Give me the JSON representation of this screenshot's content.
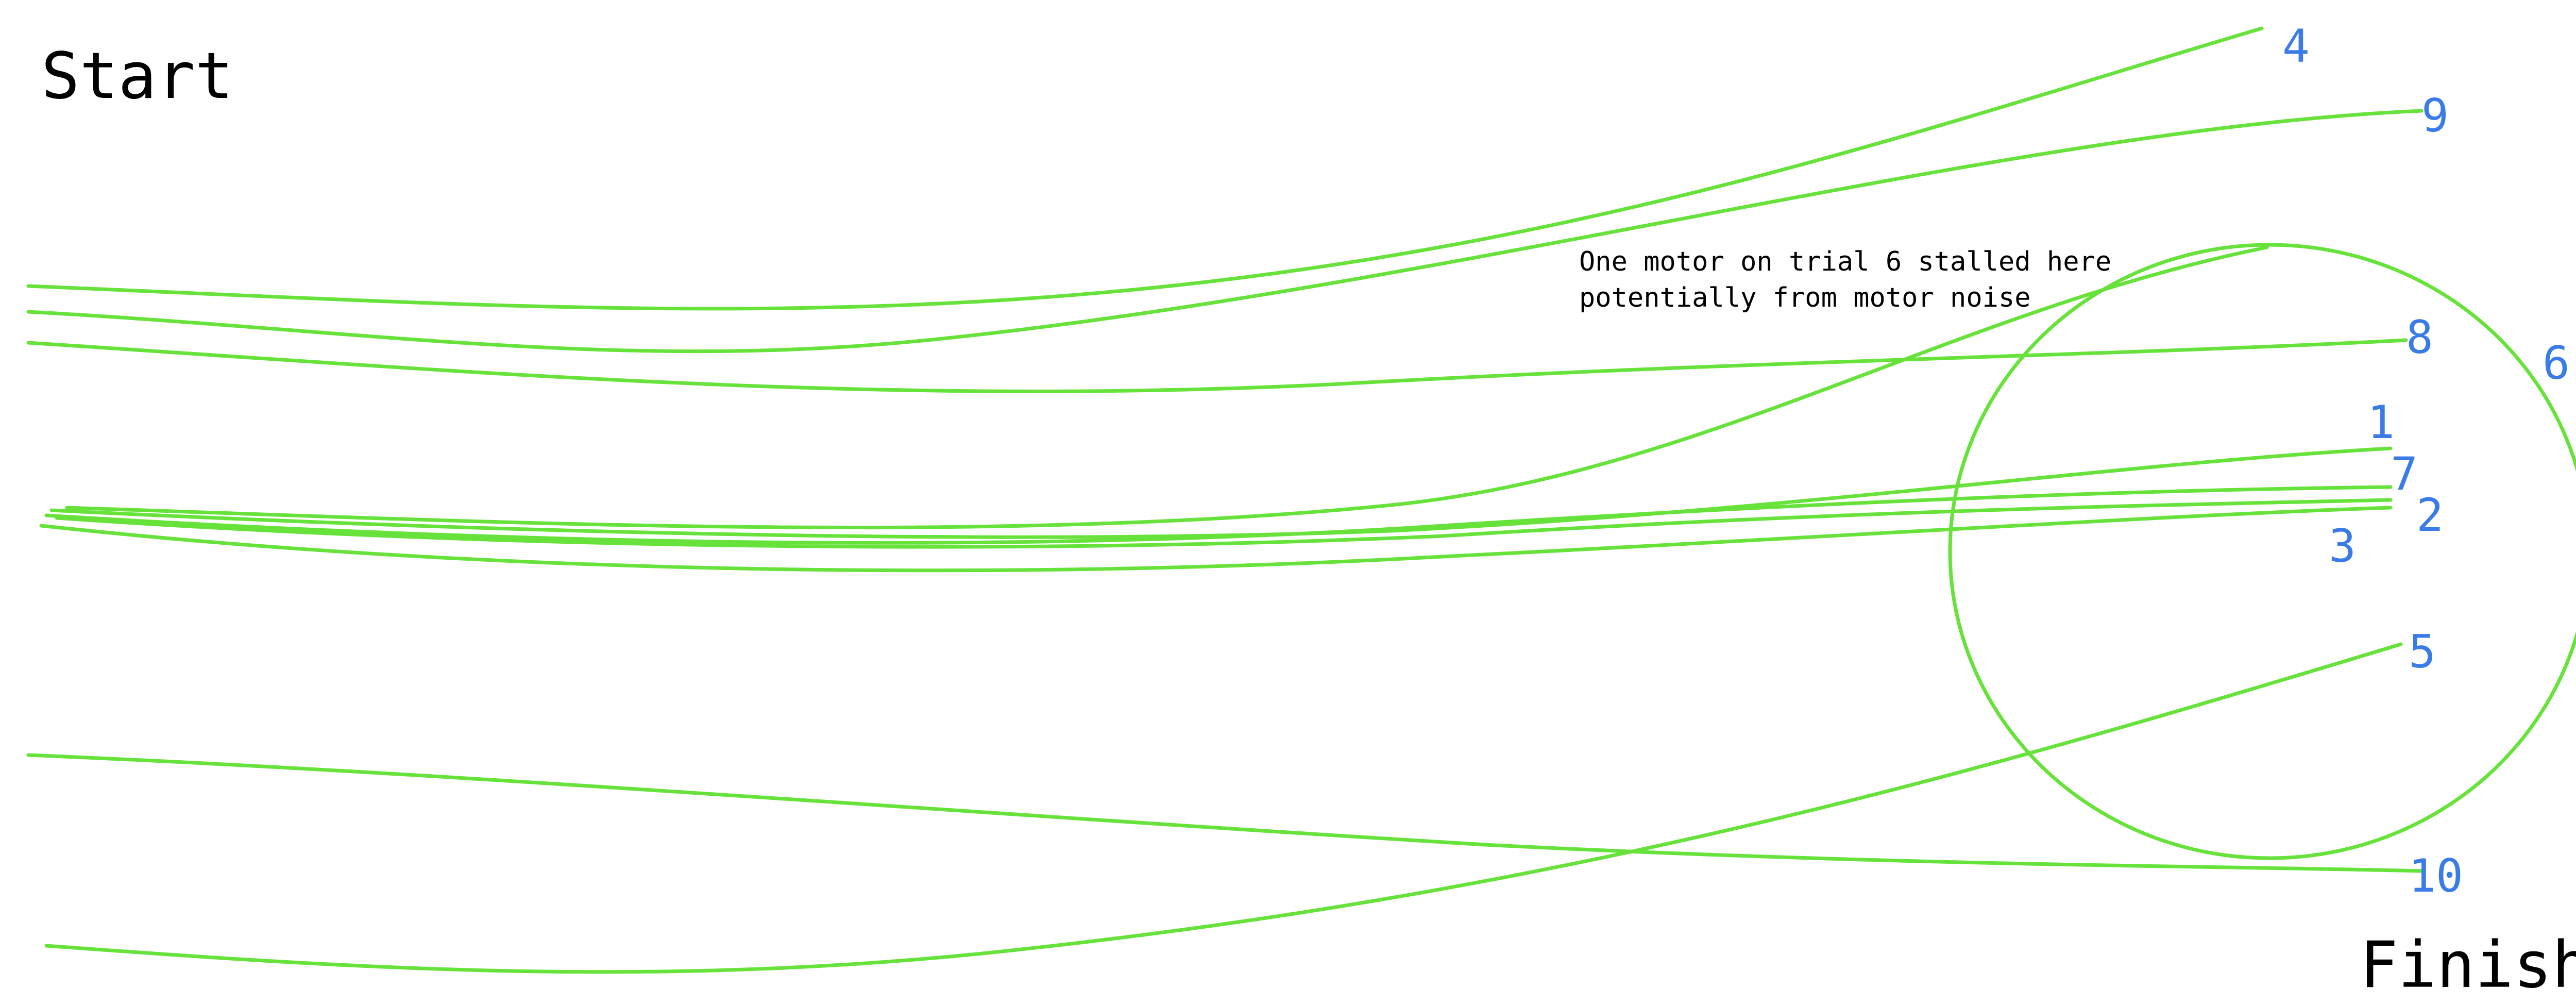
{
  "labels": {
    "start": "Start",
    "finish": "Finish"
  },
  "note": {
    "line1": "One motor on trial 6 stalled here",
    "line2": "potentially from motor noise"
  },
  "trials": [
    {
      "id": "1",
      "label": "1"
    },
    {
      "id": "2",
      "label": "2"
    },
    {
      "id": "3",
      "label": "3"
    },
    {
      "id": "4",
      "label": "4"
    },
    {
      "id": "5",
      "label": "5"
    },
    {
      "id": "6",
      "label": "6"
    },
    {
      "id": "7",
      "label": "7"
    },
    {
      "id": "8",
      "label": "8"
    },
    {
      "id": "9",
      "label": "9"
    },
    {
      "id": "10",
      "label": "10"
    }
  ],
  "colors": {
    "track": "#66e23a",
    "trial_label": "#3a7be8",
    "text": "#000000",
    "background": "#ffffff"
  }
}
